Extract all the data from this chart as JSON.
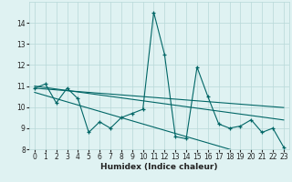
{
  "x": [
    0,
    1,
    2,
    3,
    4,
    5,
    6,
    7,
    8,
    9,
    10,
    11,
    12,
    13,
    14,
    15,
    16,
    17,
    18,
    19,
    20,
    21,
    22,
    23
  ],
  "y_main": [
    10.9,
    11.1,
    10.2,
    10.9,
    10.4,
    8.8,
    9.3,
    9.0,
    9.5,
    9.7,
    9.9,
    14.5,
    12.5,
    8.6,
    8.5,
    11.9,
    10.5,
    9.2,
    9.0,
    9.1,
    9.4,
    8.8,
    9.0,
    8.1
  ],
  "y_trend_top": [
    10.9,
    10.86,
    10.82,
    10.78,
    10.74,
    10.7,
    10.66,
    10.62,
    10.58,
    10.54,
    10.5,
    10.46,
    10.42,
    10.38,
    10.34,
    10.3,
    10.26,
    10.22,
    10.18,
    10.14,
    10.1,
    10.06,
    10.02,
    9.98
  ],
  "y_trend_mid": [
    11.0,
    10.93,
    10.86,
    10.79,
    10.72,
    10.65,
    10.58,
    10.51,
    10.44,
    10.37,
    10.3,
    10.23,
    10.16,
    10.09,
    10.02,
    9.95,
    9.88,
    9.81,
    9.74,
    9.67,
    9.6,
    9.53,
    9.46,
    9.39
  ],
  "y_trend_bot": [
    10.7,
    10.55,
    10.4,
    10.25,
    10.1,
    9.95,
    9.8,
    9.65,
    9.5,
    9.35,
    9.2,
    9.05,
    8.9,
    8.75,
    8.6,
    8.45,
    8.3,
    8.15,
    8.0,
    7.85,
    7.7,
    7.55,
    7.4,
    7.25
  ],
  "line_color": "#006666",
  "bg_color": "#dff2f2",
  "grid_color": "#b8d8d8",
  "xlabel": "Humidex (Indice chaleur)",
  "ylim": [
    8,
    15
  ],
  "xlim": [
    -0.5,
    23.5
  ],
  "yticks": [
    8,
    9,
    10,
    11,
    12,
    13,
    14
  ],
  "xticks": [
    0,
    1,
    2,
    3,
    4,
    5,
    6,
    7,
    8,
    9,
    10,
    11,
    12,
    13,
    14,
    15,
    16,
    17,
    18,
    19,
    20,
    21,
    22,
    23
  ],
  "xlabel_fontsize": 6.5,
  "tick_fontsize": 5.5
}
